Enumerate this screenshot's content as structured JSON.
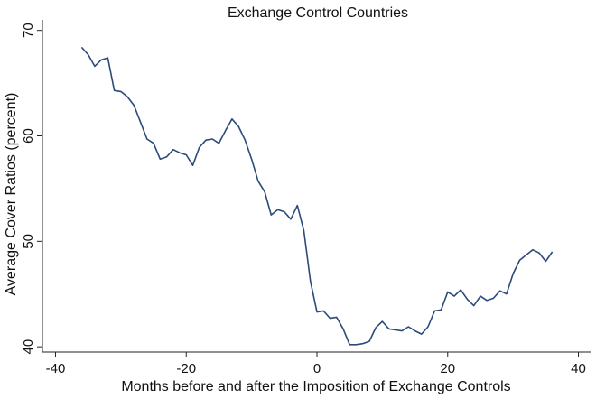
{
  "chart_data": {
    "type": "line",
    "title": "Exchange Control Countries",
    "xlabel": "Months before and after the Imposition of Exchange Controls",
    "ylabel": "Average Cover Ratios (percent)",
    "xlim": [
      -42,
      42
    ],
    "ylim": [
      39.5,
      71
    ],
    "x_ticks": [
      -40,
      -20,
      0,
      20,
      40
    ],
    "y_ticks": [
      40,
      50,
      60,
      70
    ],
    "x_tick_labels": [
      "-40",
      "-20",
      "0",
      "20",
      "40"
    ],
    "y_tick_labels": [
      "40",
      "50",
      "60",
      "70"
    ],
    "grid": false,
    "legend": "none",
    "color": "#2a4a7a",
    "series": [
      {
        "x": [
          -36,
          -35,
          -34,
          -33,
          -32,
          -31,
          -30,
          -29,
          -28,
          -27,
          -26,
          -25,
          -24,
          -23,
          -22,
          -21,
          -20,
          -19,
          -18,
          -17,
          -16,
          -15,
          -14,
          -13,
          -12,
          -11,
          -10,
          -9,
          -8,
          -7,
          -6,
          -5,
          -4,
          -3,
          -2,
          -1,
          0,
          1,
          2,
          3,
          4,
          5,
          6,
          7,
          8,
          9,
          10,
          11,
          12,
          13,
          14,
          15,
          16,
          17,
          18,
          19,
          20,
          21,
          22,
          23,
          24,
          25,
          26,
          27,
          28,
          29,
          30,
          31,
          32,
          33,
          34,
          35,
          36
        ],
        "y": [
          68.4,
          67.7,
          66.6,
          67.2,
          67.4,
          64.3,
          64.2,
          63.7,
          62.9,
          61.3,
          59.7,
          59.3,
          57.8,
          58.0,
          58.7,
          58.4,
          58.2,
          57.2,
          58.9,
          59.6,
          59.7,
          59.3,
          60.5,
          61.6,
          60.9,
          59.6,
          57.8,
          55.7,
          54.7,
          52.5,
          53.0,
          52.8,
          52.1,
          53.4,
          51.0,
          46.2,
          43.3,
          43.4,
          42.7,
          42.8,
          41.7,
          40.2,
          40.2,
          40.3,
          40.5,
          41.8,
          42.4,
          41.7,
          41.6,
          41.5,
          41.9,
          41.5,
          41.2,
          41.9,
          43.4,
          43.5,
          45.2,
          44.8,
          45.4,
          44.5,
          43.9,
          44.8,
          44.4,
          44.6,
          45.3,
          45.0,
          46.9,
          48.2,
          48.7,
          49.2,
          48.9,
          48.1,
          49.0
        ]
      }
    ]
  }
}
